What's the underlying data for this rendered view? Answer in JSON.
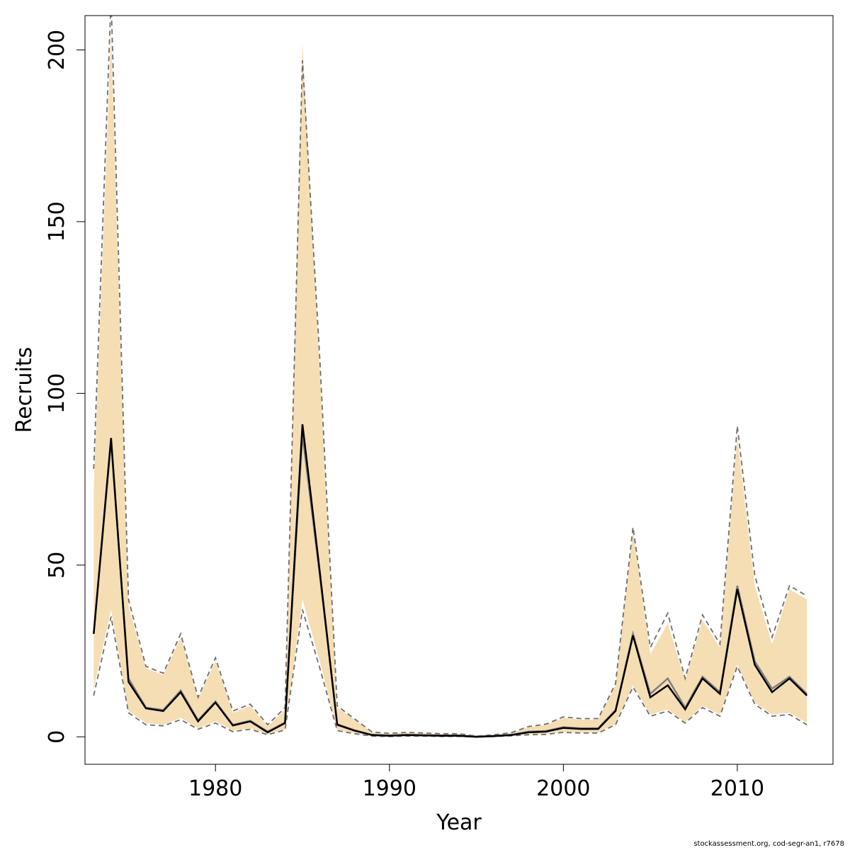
{
  "chart_data": {
    "type": "line",
    "title": "",
    "xlabel": "Year",
    "ylabel": "Recruits",
    "xlim": [
      1972.5,
      2015.5
    ],
    "ylim": [
      -8,
      210
    ],
    "xticks": [
      1980,
      1990,
      2000,
      2010
    ],
    "yticks": [
      0,
      50,
      100,
      150,
      200
    ],
    "grid": false,
    "legend": "none",
    "colors": {
      "band": "#F5DEB3",
      "estimate": "#000000",
      "alt_estimate": "#7F7F7F",
      "ci_lines": "#6E6E6E",
      "frame": "#000000"
    },
    "x": [
      1973,
      1974,
      1975,
      1976,
      1977,
      1978,
      1979,
      1980,
      1981,
      1982,
      1983,
      1984,
      1985,
      1986,
      1987,
      1988,
      1989,
      1990,
      1991,
      1992,
      1993,
      1994,
      1995,
      1996,
      1997,
      1998,
      1999,
      2000,
      2001,
      2002,
      2003,
      2004,
      2005,
      2006,
      2007,
      2008,
      2009,
      2010,
      2011,
      2012,
      2013,
      2014
    ],
    "series": [
      {
        "role": "estimate",
        "values": [
          30,
          87,
          16,
          8.3,
          7.5,
          13,
          4.5,
          10,
          3.3,
          4.5,
          1.3,
          4,
          91,
          48,
          3.5,
          1.8,
          0.5,
          0.3,
          0.5,
          0.4,
          0.3,
          0.3,
          0,
          0.2,
          0.5,
          1.3,
          1.5,
          2.6,
          2.3,
          2.3,
          7.5,
          29.5,
          11.5,
          15,
          8,
          17,
          12.5,
          43,
          21,
          13,
          17,
          12
        ]
      },
      {
        "role": "alt_estimate",
        "values": [
          30,
          86,
          17,
          8.5,
          7.8,
          13.5,
          4.8,
          10.3,
          3.5,
          4.7,
          1.5,
          4.2,
          88,
          47,
          3.7,
          1.9,
          0.6,
          0.4,
          0.6,
          0.5,
          0.4,
          0.4,
          0.1,
          0.3,
          0.6,
          1.5,
          1.7,
          2.8,
          2.5,
          2.5,
          7.8,
          30,
          12.5,
          17,
          8.5,
          17.5,
          13,
          44,
          22,
          14,
          17.5,
          12.5
        ]
      },
      {
        "role": "band_lower",
        "values": [
          14,
          37,
          7.5,
          4,
          3.5,
          5.5,
          2.5,
          4.5,
          1.8,
          2.5,
          0.7,
          2.2,
          40,
          22,
          2,
          1,
          0.2,
          0.1,
          0.2,
          0.2,
          0.1,
          0.1,
          0,
          0.1,
          0.3,
          0.7,
          0.8,
          1.4,
          1.2,
          1.2,
          3.8,
          15,
          6.5,
          8,
          4.2,
          9,
          6.5,
          21,
          10,
          6.5,
          7,
          4
        ]
      },
      {
        "role": "band_upper",
        "values": [
          72,
          205,
          38,
          20,
          18,
          29,
          11,
          22,
          7,
          9,
          3,
          8,
          202,
          106,
          8.5,
          5,
          1.3,
          0.9,
          1.2,
          1,
          0.8,
          0.8,
          0.1,
          0.5,
          1.1,
          2.8,
          3.5,
          5.5,
          5,
          5,
          15,
          60,
          24,
          33,
          16.5,
          34,
          26,
          87,
          44,
          27,
          43,
          40
        ]
      },
      {
        "role": "ci_lower",
        "values": [
          12,
          35,
          7,
          3.5,
          3.2,
          5,
          2.2,
          4,
          1.5,
          2.2,
          0.6,
          2,
          37,
          20,
          1.8,
          0.9,
          0.2,
          0.1,
          0.2,
          0.2,
          0.1,
          0.1,
          0,
          0.1,
          0.3,
          0.6,
          0.7,
          1.3,
          1.1,
          1.1,
          3.5,
          14.5,
          6,
          7.5,
          4,
          8.5,
          6,
          20.5,
          9.5,
          6,
          6.5,
          3.5
        ]
      },
      {
        "role": "ci_upper",
        "values": [
          78,
          215,
          40,
          20.5,
          18.5,
          30,
          11.5,
          23,
          7.5,
          9.5,
          3.5,
          8.5,
          197,
          110,
          9,
          5.2,
          1.4,
          1,
          1.3,
          1.1,
          0.9,
          0.9,
          0.2,
          0.6,
          1.2,
          3,
          3.7,
          5.8,
          5.3,
          5.3,
          15.5,
          61,
          26,
          36,
          17,
          35.5,
          27,
          90.5,
          47,
          29,
          44,
          41
        ]
      }
    ]
  },
  "footer": {
    "note": "stockassessment.org, cod-segr-an1, r7678"
  }
}
